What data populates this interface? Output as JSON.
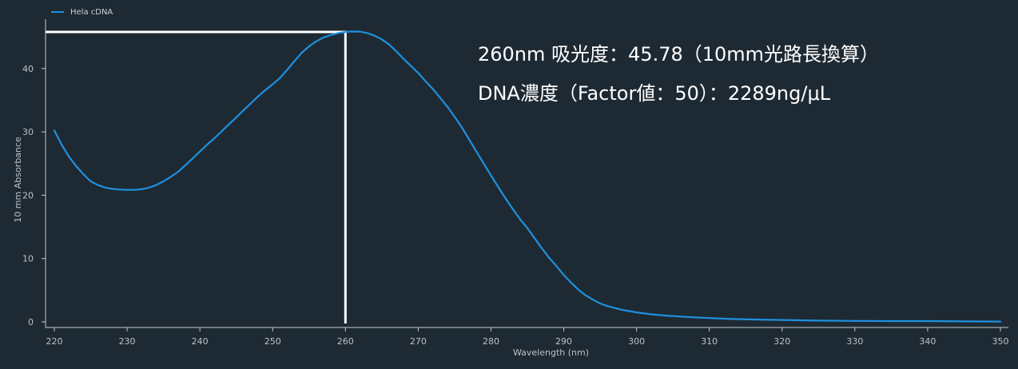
{
  "chart_data": {
    "type": "line",
    "title": "",
    "xlabel": "Wavelength (nm)",
    "ylabel": "10 mm Absorbance",
    "xlim": [
      220,
      350
    ],
    "ylim": [
      0,
      46
    ],
    "x_ticks": [
      220,
      230,
      240,
      250,
      260,
      270,
      280,
      290,
      300,
      310,
      320,
      330,
      340,
      350
    ],
    "y_ticks": [
      0,
      10,
      20,
      30,
      40
    ],
    "grid": false,
    "legend_position": "top-left",
    "series": [
      {
        "name": "Hela cDNA",
        "color": "#1e90e0",
        "points": [
          [
            220,
            30.2
          ],
          [
            221,
            28.0
          ],
          [
            222,
            26.1
          ],
          [
            223,
            24.6
          ],
          [
            224,
            23.3
          ],
          [
            225,
            22.2
          ],
          [
            226,
            21.6
          ],
          [
            227,
            21.2
          ],
          [
            228,
            21.0
          ],
          [
            229,
            20.9
          ],
          [
            230,
            20.85
          ],
          [
            231,
            20.85
          ],
          [
            232,
            20.95
          ],
          [
            233,
            21.2
          ],
          [
            234,
            21.6
          ],
          [
            235,
            22.2
          ],
          [
            236,
            22.9
          ],
          [
            237,
            23.7
          ],
          [
            238,
            24.7
          ],
          [
            239,
            25.8
          ],
          [
            240,
            26.9
          ],
          [
            241,
            28.0
          ],
          [
            242,
            29.0
          ],
          [
            243,
            30.1
          ],
          [
            244,
            31.2
          ],
          [
            245,
            32.3
          ],
          [
            246,
            33.4
          ],
          [
            247,
            34.5
          ],
          [
            248,
            35.6
          ],
          [
            249,
            36.6
          ],
          [
            250,
            37.5
          ],
          [
            251,
            38.5
          ],
          [
            252,
            39.8
          ],
          [
            253,
            41.2
          ],
          [
            254,
            42.5
          ],
          [
            255,
            43.5
          ],
          [
            256,
            44.3
          ],
          [
            257,
            44.9
          ],
          [
            258,
            45.3
          ],
          [
            259,
            45.6
          ],
          [
            260,
            45.78
          ],
          [
            261,
            45.85
          ],
          [
            262,
            45.82
          ],
          [
            263,
            45.6
          ],
          [
            264,
            45.2
          ],
          [
            265,
            44.6
          ],
          [
            266,
            43.8
          ],
          [
            267,
            42.7
          ],
          [
            268,
            41.5
          ],
          [
            269,
            40.4
          ],
          [
            270,
            39.3
          ],
          [
            271,
            38.0
          ],
          [
            272,
            36.8
          ],
          [
            273,
            35.4
          ],
          [
            274,
            34.0
          ],
          [
            275,
            32.4
          ],
          [
            276,
            30.7
          ],
          [
            277,
            28.8
          ],
          [
            278,
            26.9
          ],
          [
            279,
            25.0
          ],
          [
            280,
            23.1
          ],
          [
            281,
            21.3
          ],
          [
            282,
            19.5
          ],
          [
            283,
            17.8
          ],
          [
            284,
            16.2
          ],
          [
            285,
            14.8
          ],
          [
            286,
            13.2
          ],
          [
            287,
            11.6
          ],
          [
            288,
            10.1
          ],
          [
            289,
            8.8
          ],
          [
            290,
            7.4
          ],
          [
            291,
            6.2
          ],
          [
            292,
            5.1
          ],
          [
            293,
            4.2
          ],
          [
            294,
            3.5
          ],
          [
            295,
            2.9
          ],
          [
            296,
            2.5
          ],
          [
            297,
            2.2
          ],
          [
            298,
            1.9
          ],
          [
            299,
            1.7
          ],
          [
            300,
            1.5
          ],
          [
            302,
            1.2
          ],
          [
            304,
            1.0
          ],
          [
            306,
            0.85
          ],
          [
            308,
            0.7
          ],
          [
            310,
            0.6
          ],
          [
            313,
            0.45
          ],
          [
            316,
            0.38
          ],
          [
            320,
            0.3
          ],
          [
            325,
            0.2
          ],
          [
            330,
            0.15
          ],
          [
            335,
            0.13
          ],
          [
            340,
            0.12
          ],
          [
            345,
            0.08
          ],
          [
            350,
            0.05
          ]
        ]
      }
    ],
    "marker": {
      "x": 260,
      "y": 45.78,
      "color": "#ffffff"
    },
    "annotations": [
      "260nm 吸光度：45.78（10mm光路長換算）",
      "DNA濃度（Factor値：50）：2289ng/μL"
    ]
  }
}
